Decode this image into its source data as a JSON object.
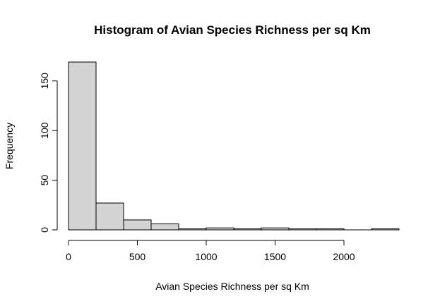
{
  "chart_data": {
    "type": "histogram",
    "title": "Histogram of Avian Species Richness per sq Km",
    "xlabel": "Avian Species Richness per sq Km",
    "ylabel": "Frequency",
    "bin_edges": [
      0,
      200,
      400,
      600,
      800,
      1000,
      1200,
      1400,
      1600,
      1800,
      2000,
      2200,
      2400
    ],
    "counts": [
      169,
      27,
      10,
      6,
      1,
      2,
      1,
      2,
      1,
      1,
      0,
      1
    ],
    "xlim": [
      0,
      2400
    ],
    "ylim": [
      0,
      169
    ],
    "x_ticks": [
      0,
      500,
      1000,
      1500,
      2000
    ],
    "x_tick_labels": [
      "0",
      "500",
      "1000",
      "1500",
      "2000"
    ],
    "y_ticks": [
      0,
      50,
      100,
      150
    ],
    "y_tick_labels": [
      "0",
      "50",
      "100",
      "150"
    ],
    "grid": false,
    "bar_color": "#d3d3d3",
    "edge_color": "#000000"
  }
}
